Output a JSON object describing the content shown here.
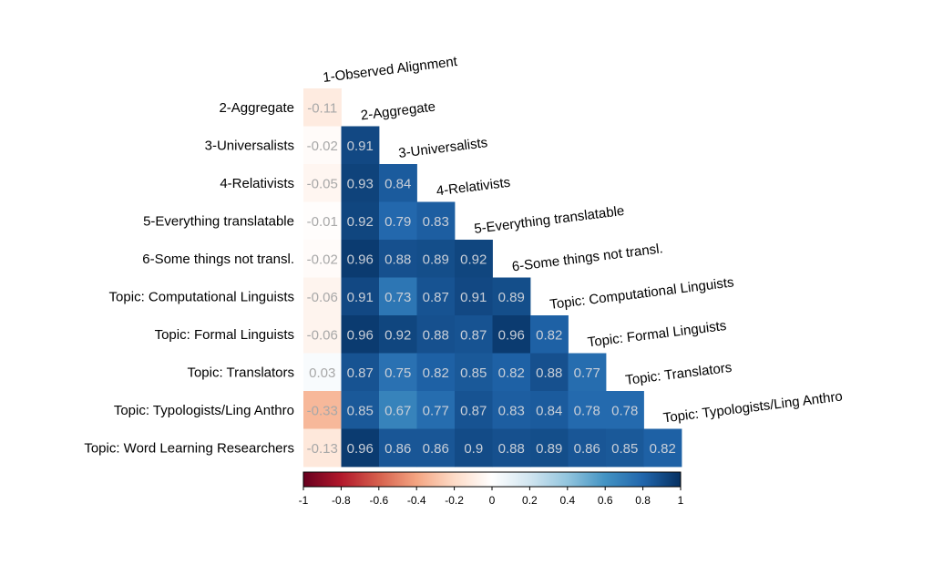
{
  "chart_data": {
    "type": "heatmap",
    "title": "",
    "row_labels": [
      "2-Aggregate",
      "3-Universalists",
      "4-Relativists",
      "5-Everything translatable",
      "6-Some things not transl.",
      "Topic: Computational Linguists",
      "Topic: Formal Linguists",
      "Topic: Translators",
      "Topic: Typologists/Ling Anthro",
      "Topic: Word Learning Researchers"
    ],
    "col_labels": [
      "1-Observed Alignment",
      "2-Aggregate",
      "3-Universalists",
      "4-Relativists",
      "5-Everything translatable",
      "6-Some things not transl.",
      "Topic: Computational Linguists",
      "Topic: Formal Linguists",
      "Topic: Translators",
      "Topic: Typologists/Ling Anthro"
    ],
    "values": [
      [
        -0.11
      ],
      [
        -0.02,
        0.91
      ],
      [
        -0.05,
        0.93,
        0.84
      ],
      [
        -0.01,
        0.92,
        0.79,
        0.83
      ],
      [
        -0.02,
        0.96,
        0.88,
        0.89,
        0.92
      ],
      [
        -0.06,
        0.91,
        0.73,
        0.87,
        0.91,
        0.89
      ],
      [
        -0.06,
        0.96,
        0.92,
        0.88,
        0.87,
        0.96,
        0.82
      ],
      [
        0.03,
        0.87,
        0.75,
        0.82,
        0.85,
        0.82,
        0.88,
        0.77
      ],
      [
        -0.33,
        0.85,
        0.67,
        0.77,
        0.87,
        0.83,
        0.84,
        0.78,
        0.78
      ],
      [
        -0.13,
        0.96,
        0.86,
        0.86,
        0.9,
        0.88,
        0.89,
        0.86,
        0.85,
        0.82
      ]
    ],
    "value_labels": [
      [
        "-0.11"
      ],
      [
        "-0.02",
        "0.91"
      ],
      [
        "-0.05",
        "0.93",
        "0.84"
      ],
      [
        "-0.01",
        "0.92",
        "0.79",
        "0.83"
      ],
      [
        "-0.02",
        "0.96",
        "0.88",
        "0.89",
        "0.92"
      ],
      [
        "-0.06",
        "0.91",
        "0.73",
        "0.87",
        "0.91",
        "0.89"
      ],
      [
        "-0.06",
        "0.96",
        "0.92",
        "0.88",
        "0.87",
        "0.96",
        "0.82"
      ],
      [
        "0.03",
        "0.87",
        "0.75",
        "0.82",
        "0.85",
        "0.82",
        "0.88",
        "0.77"
      ],
      [
        "-0.33",
        "0.85",
        "0.67",
        "0.77",
        "0.87",
        "0.83",
        "0.84",
        "0.78",
        "0.78"
      ],
      [
        "-0.13",
        "0.96",
        "0.86",
        "0.86",
        "0.9",
        "0.88",
        "0.89",
        "0.86",
        "0.85",
        "0.82"
      ]
    ],
    "color_scale": {
      "range": [
        -1,
        1
      ],
      "ticks": [
        "-1",
        "-0.8",
        "-0.6",
        "-0.4",
        "-0.2",
        "0",
        "0.2",
        "0.4",
        "0.6",
        "0.8",
        "1"
      ],
      "colors": [
        "#67001f",
        "#b2182b",
        "#d6604d",
        "#f4a582",
        "#fddbc7",
        "#ffffff",
        "#d1e5f0",
        "#92c5de",
        "#4393c3",
        "#2166ac",
        "#053061"
      ],
      "position": "bottom"
    },
    "layout": "lower-triangle"
  }
}
